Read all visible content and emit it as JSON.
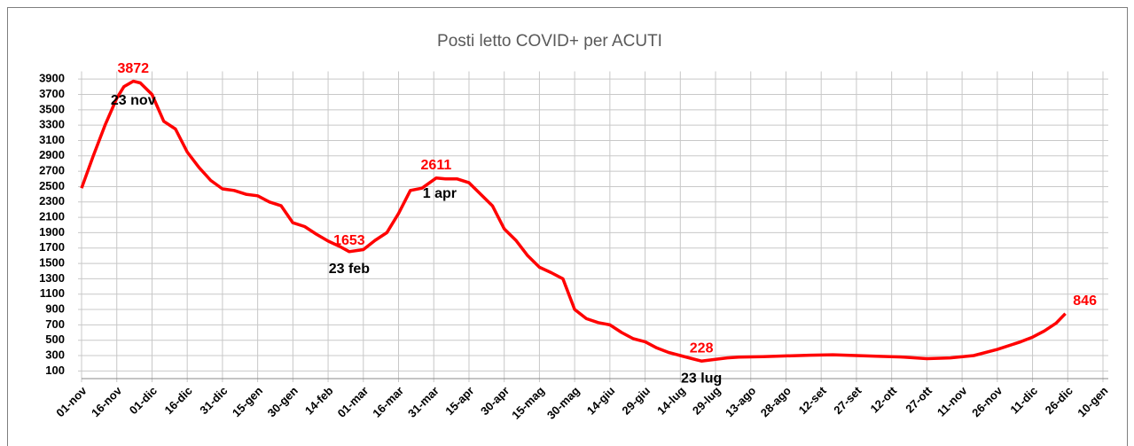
{
  "chart_data": {
    "type": "line",
    "title": "Posti letto COVID+ per ACUTI",
    "series": [
      {
        "name": "Posti letto COVID+ per ACUTI",
        "color": "#ff0000",
        "x": [
          0,
          5,
          10,
          15,
          18,
          22,
          25,
          30,
          35,
          40,
          45,
          50,
          55,
          60,
          65,
          70,
          75,
          80,
          85,
          90,
          95,
          100,
          105,
          110,
          114,
          120,
          125,
          130,
          135,
          140,
          145,
          151,
          155,
          160,
          165,
          170,
          175,
          180,
          185,
          190,
          195,
          200,
          205,
          210,
          215,
          220,
          225,
          230,
          235,
          240,
          245,
          250,
          255,
          260,
          264,
          270,
          275,
          280,
          290,
          300,
          310,
          320,
          330,
          340,
          350,
          360,
          370,
          380,
          390,
          400,
          405,
          410,
          415,
          419
        ],
        "values": [
          2480,
          2900,
          3300,
          3650,
          3800,
          3872,
          3850,
          3700,
          3350,
          3250,
          2950,
          2750,
          2580,
          2470,
          2450,
          2400,
          2380,
          2300,
          2250,
          2030,
          1980,
          1880,
          1790,
          1720,
          1653,
          1680,
          1800,
          1900,
          2150,
          2450,
          2480,
          2611,
          2600,
          2600,
          2550,
          2400,
          2250,
          1950,
          1800,
          1600,
          1450,
          1380,
          1300,
          900,
          780,
          730,
          700,
          600,
          520,
          480,
          400,
          340,
          300,
          260,
          228,
          250,
          270,
          280,
          285,
          295,
          305,
          310,
          300,
          290,
          280,
          260,
          270,
          300,
          380,
          480,
          540,
          620,
          720,
          846
        ]
      }
    ],
    "annotations": [
      "23 nov",
      "23 feb",
      "1 apr",
      "23 lug"
    ],
    "xlim": [
      0,
      435
    ],
    "xticks": [
      {
        "value": 0,
        "label": "01-nov"
      },
      {
        "value": 15,
        "label": "16-nov"
      },
      {
        "value": 30,
        "label": "01-dic"
      },
      {
        "value": 45,
        "label": "16-dic"
      },
      {
        "value": 60,
        "label": "31-dic"
      },
      {
        "value": 75,
        "label": "15-gen"
      },
      {
        "value": 90,
        "label": "30-gen"
      },
      {
        "value": 105,
        "label": "14-feb"
      },
      {
        "value": 120,
        "label": "01-mar"
      },
      {
        "value": 135,
        "label": "16-mar"
      },
      {
        "value": 150,
        "label": "31-mar"
      },
      {
        "value": 165,
        "label": "15-apr"
      },
      {
        "value": 180,
        "label": "30-apr"
      },
      {
        "value": 195,
        "label": "15-mag"
      },
      {
        "value": 210,
        "label": "30-mag"
      },
      {
        "value": 225,
        "label": "14-giu"
      },
      {
        "value": 240,
        "label": "29-giu"
      },
      {
        "value": 255,
        "label": "14-lug"
      },
      {
        "value": 270,
        "label": "29-lug"
      },
      {
        "value": 285,
        "label": "13-ago"
      },
      {
        "value": 300,
        "label": "28-ago"
      },
      {
        "value": 315,
        "label": "12-set"
      },
      {
        "value": 330,
        "label": "27-set"
      },
      {
        "value": 345,
        "label": "12-ott"
      },
      {
        "value": 360,
        "label": "27-ott"
      },
      {
        "value": 375,
        "label": "11-nov"
      },
      {
        "value": 390,
        "label": "26-nov"
      },
      {
        "value": 405,
        "label": "11-dic"
      },
      {
        "value": 420,
        "label": "26-dic"
      },
      {
        "value": 435,
        "label": "10-gen"
      }
    ],
    "ylim": [
      0,
      4000
    ],
    "yticks": [
      100,
      300,
      500,
      700,
      900,
      1100,
      1300,
      1500,
      1700,
      1900,
      2100,
      2300,
      2500,
      2700,
      2900,
      3100,
      3300,
      3500,
      3700,
      3900
    ],
    "grid": true
  }
}
